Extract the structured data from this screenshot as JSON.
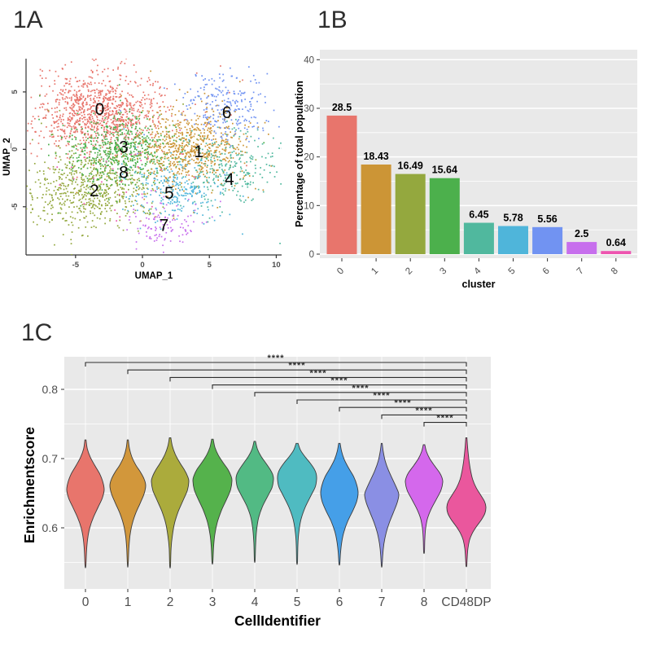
{
  "panel_labels": {
    "a": "1A",
    "b": "1B",
    "c": "1C"
  },
  "chart_data": [
    {
      "id": "umap",
      "type": "scatter",
      "xlabel": "UMAP_1",
      "ylabel": "UMAP_2",
      "xlim": [
        -8.7,
        10.4
      ],
      "ylim": [
        -9.2,
        7.9
      ],
      "xticks": [
        -5,
        0,
        5,
        10
      ],
      "yticks": [
        -5,
        0,
        5
      ],
      "grid": false,
      "point_size": 1.7,
      "clusters": [
        {
          "id": "0",
          "color": "#E8756C",
          "n": 1050,
          "cx": -3.4,
          "cy": 3.2,
          "sx": 2.3,
          "sy": 1.7,
          "lx": -3.2,
          "ly": 3.5
        },
        {
          "id": "1",
          "color": "#CC9536",
          "n": 700,
          "cx": 3.6,
          "cy": 0.1,
          "sx": 2.1,
          "sy": 1.7,
          "lx": 4.2,
          "ly": -0.2
        },
        {
          "id": "2",
          "color": "#94A83E",
          "n": 630,
          "cx": -3.9,
          "cy": -3.4,
          "sx": 2.1,
          "sy": 1.6,
          "lx": -3.6,
          "ly": -3.6
        },
        {
          "id": "3",
          "color": "#4CB04C",
          "n": 600,
          "cx": -1.6,
          "cy": -0.1,
          "sx": 1.9,
          "sy": 1.4,
          "lx": -1.4,
          "ly": 0.2
        },
        {
          "id": "4",
          "color": "#50B89E",
          "n": 260,
          "cx": 6.4,
          "cy": -1.6,
          "sx": 1.8,
          "sy": 1.5,
          "lx": 6.5,
          "ly": -2.6
        },
        {
          "id": "5",
          "color": "#4FB5DA",
          "n": 240,
          "cx": 2.3,
          "cy": -3.6,
          "sx": 1.6,
          "sy": 1.2,
          "lx": 2.0,
          "ly": -3.8
        },
        {
          "id": "6",
          "color": "#7193F2",
          "n": 230,
          "cx": 6.4,
          "cy": 3.9,
          "sx": 1.7,
          "sy": 1.4,
          "lx": 6.3,
          "ly": 3.2
        },
        {
          "id": "7",
          "color": "#C76FED",
          "n": 110,
          "cx": 1.7,
          "cy": -6.6,
          "sx": 1.4,
          "sy": 1.0,
          "lx": 1.6,
          "ly": -6.6
        },
        {
          "id": "8",
          "color": "#EE55B0",
          "n": 30,
          "cx": -1.5,
          "cy": -1.9,
          "sx": 1.9,
          "sy": 1.5,
          "lx": -1.4,
          "ly": -2.0
        }
      ],
      "draw_order": [
        0,
        2,
        3,
        1,
        4,
        6,
        5,
        7,
        8
      ]
    },
    {
      "id": "bar",
      "type": "bar",
      "title": "",
      "xlabel": "cluster",
      "ylabel": "Percentage of total population",
      "categories": [
        "0",
        "1",
        "2",
        "3",
        "4",
        "5",
        "6",
        "7",
        "8"
      ],
      "values": [
        28.5,
        18.43,
        16.49,
        15.64,
        6.45,
        5.78,
        5.56,
        2.5,
        0.64
      ],
      "value_labels": [
        "28.5",
        "18.43",
        "16.49",
        "15.64",
        "6.45",
        "5.78",
        "5.56",
        "2.5",
        "0.64"
      ],
      "colors": [
        "#E8756C",
        "#CC9536",
        "#94A83E",
        "#4CB04C",
        "#50B89E",
        "#4FB5DA",
        "#7193F2",
        "#C76FED",
        "#EE55B0"
      ],
      "yticks": [
        0,
        10,
        20,
        30,
        40
      ],
      "ylim": [
        0,
        42
      ],
      "grid": true,
      "panel_background": "#E9E9E9"
    },
    {
      "id": "violin",
      "type": "violin",
      "xlabel": "CellIdentifier",
      "ylabel": "Enrichmentscore",
      "categories": [
        "0",
        "1",
        "2",
        "3",
        "4",
        "5",
        "6",
        "7",
        "8",
        "CD48DP"
      ],
      "yticks": [
        0.6,
        0.7,
        0.8
      ],
      "yminor": [
        0.55,
        0.65,
        0.75
      ],
      "ylim": [
        0.512,
        0.847
      ],
      "grid": true,
      "panel_background": "#E9E9E9",
      "significance": {
        "label": "****",
        "pairs": [
          [
            0,
            9
          ],
          [
            1,
            9
          ],
          [
            2,
            9
          ],
          [
            3,
            9
          ],
          [
            4,
            9
          ],
          [
            5,
            9
          ],
          [
            6,
            9
          ],
          [
            7,
            9
          ],
          [
            8,
            9
          ]
        ]
      },
      "violins": [
        {
          "cat": "0",
          "color": "#E8756C",
          "hw": 23,
          "profile": [
            [
              0.727,
              0.03
            ],
            [
              0.714,
              0.1
            ],
            [
              0.702,
              0.26
            ],
            [
              0.69,
              0.5
            ],
            [
              0.678,
              0.76
            ],
            [
              0.666,
              0.93
            ],
            [
              0.655,
              1.0
            ],
            [
              0.643,
              0.9
            ],
            [
              0.63,
              0.68
            ],
            [
              0.615,
              0.42
            ],
            [
              0.6,
              0.23
            ],
            [
              0.585,
              0.12
            ],
            [
              0.568,
              0.06
            ],
            [
              0.545,
              0.02
            ]
          ]
        },
        {
          "cat": "1",
          "color": "#D2973B",
          "hw": 22,
          "profile": [
            [
              0.727,
              0.03
            ],
            [
              0.715,
              0.09
            ],
            [
              0.703,
              0.22
            ],
            [
              0.691,
              0.44
            ],
            [
              0.68,
              0.72
            ],
            [
              0.67,
              0.92
            ],
            [
              0.661,
              1.0
            ],
            [
              0.649,
              0.91
            ],
            [
              0.636,
              0.7
            ],
            [
              0.621,
              0.44
            ],
            [
              0.605,
              0.24
            ],
            [
              0.588,
              0.12
            ],
            [
              0.57,
              0.06
            ],
            [
              0.546,
              0.02
            ]
          ]
        },
        {
          "cat": "2",
          "color": "#ABAB3C",
          "hw": 23,
          "profile": [
            [
              0.73,
              0.04
            ],
            [
              0.718,
              0.12
            ],
            [
              0.706,
              0.28
            ],
            [
              0.694,
              0.52
            ],
            [
              0.683,
              0.78
            ],
            [
              0.674,
              0.94
            ],
            [
              0.667,
              1.0
            ],
            [
              0.654,
              0.92
            ],
            [
              0.64,
              0.7
            ],
            [
              0.624,
              0.44
            ],
            [
              0.607,
              0.24
            ],
            [
              0.589,
              0.12
            ],
            [
              0.57,
              0.05
            ],
            [
              0.545,
              0.02
            ]
          ]
        },
        {
          "cat": "3",
          "color": "#55B24C",
          "hw": 24,
          "profile": [
            [
              0.728,
              0.04
            ],
            [
              0.716,
              0.13
            ],
            [
              0.705,
              0.3
            ],
            [
              0.694,
              0.55
            ],
            [
              0.684,
              0.8
            ],
            [
              0.675,
              0.95
            ],
            [
              0.668,
              1.0
            ],
            [
              0.655,
              0.93
            ],
            [
              0.641,
              0.72
            ],
            [
              0.625,
              0.46
            ],
            [
              0.608,
              0.25
            ],
            [
              0.59,
              0.12
            ],
            [
              0.572,
              0.06
            ],
            [
              0.55,
              0.02
            ]
          ]
        },
        {
          "cat": "4",
          "color": "#52BA84",
          "hw": 23,
          "profile": [
            [
              0.725,
              0.04
            ],
            [
              0.714,
              0.14
            ],
            [
              0.704,
              0.32
            ],
            [
              0.694,
              0.58
            ],
            [
              0.684,
              0.83
            ],
            [
              0.677,
              0.96
            ],
            [
              0.67,
              1.0
            ],
            [
              0.658,
              0.92
            ],
            [
              0.645,
              0.68
            ],
            [
              0.63,
              0.4
            ],
            [
              0.614,
              0.2
            ],
            [
              0.597,
              0.1
            ],
            [
              0.578,
              0.05
            ],
            [
              0.553,
              0.02
            ]
          ]
        },
        {
          "cat": "5",
          "color": "#4FBBC1",
          "hw": 24,
          "profile": [
            [
              0.722,
              0.05
            ],
            [
              0.712,
              0.18
            ],
            [
              0.703,
              0.4
            ],
            [
              0.694,
              0.66
            ],
            [
              0.685,
              0.88
            ],
            [
              0.678,
              0.98
            ],
            [
              0.67,
              1.0
            ],
            [
              0.659,
              0.93
            ],
            [
              0.646,
              0.7
            ],
            [
              0.63,
              0.42
            ],
            [
              0.612,
              0.2
            ],
            [
              0.594,
              0.09
            ],
            [
              0.575,
              0.04
            ],
            [
              0.55,
              0.02
            ]
          ]
        },
        {
          "cat": "6",
          "color": "#459FE8",
          "hw": 23,
          "profile": [
            [
              0.722,
              0.04
            ],
            [
              0.71,
              0.12
            ],
            [
              0.698,
              0.27
            ],
            [
              0.686,
              0.5
            ],
            [
              0.674,
              0.76
            ],
            [
              0.661,
              0.94
            ],
            [
              0.65,
              1.0
            ],
            [
              0.638,
              0.92
            ],
            [
              0.625,
              0.72
            ],
            [
              0.61,
              0.45
            ],
            [
              0.595,
              0.25
            ],
            [
              0.58,
              0.13
            ],
            [
              0.564,
              0.06
            ],
            [
              0.548,
              0.02
            ]
          ]
        },
        {
          "cat": "7",
          "color": "#8A8FE4",
          "hw": 21,
          "profile": [
            [
              0.722,
              0.03
            ],
            [
              0.71,
              0.09
            ],
            [
              0.697,
              0.2
            ],
            [
              0.684,
              0.38
            ],
            [
              0.671,
              0.62
            ],
            [
              0.658,
              0.86
            ],
            [
              0.648,
              1.0
            ],
            [
              0.636,
              0.9
            ],
            [
              0.622,
              0.68
            ],
            [
              0.607,
              0.44
            ],
            [
              0.592,
              0.25
            ],
            [
              0.577,
              0.13
            ],
            [
              0.561,
              0.06
            ],
            [
              0.545,
              0.02
            ]
          ]
        },
        {
          "cat": "8",
          "color": "#D468EC",
          "hw": 23,
          "profile": [
            [
              0.72,
              0.04
            ],
            [
              0.71,
              0.13
            ],
            [
              0.7,
              0.3
            ],
            [
              0.69,
              0.55
            ],
            [
              0.68,
              0.82
            ],
            [
              0.673,
              0.95
            ],
            [
              0.666,
              1.0
            ],
            [
              0.654,
              0.9
            ],
            [
              0.641,
              0.65
            ],
            [
              0.627,
              0.38
            ],
            [
              0.613,
              0.18
            ],
            [
              0.598,
              0.08
            ],
            [
              0.582,
              0.04
            ],
            [
              0.565,
              0.02
            ]
          ]
        },
        {
          "cat": "CD48DP",
          "color": "#EA579D",
          "hw": 24,
          "profile": [
            [
              0.73,
              0.03
            ],
            [
              0.718,
              0.06
            ],
            [
              0.706,
              0.1
            ],
            [
              0.694,
              0.15
            ],
            [
              0.682,
              0.22
            ],
            [
              0.67,
              0.32
            ],
            [
              0.658,
              0.5
            ],
            [
              0.647,
              0.74
            ],
            [
              0.638,
              0.93
            ],
            [
              0.63,
              1.0
            ],
            [
              0.621,
              0.95
            ],
            [
              0.612,
              0.78
            ],
            [
              0.602,
              0.52
            ],
            [
              0.592,
              0.3
            ],
            [
              0.582,
              0.16
            ],
            [
              0.57,
              0.08
            ],
            [
              0.556,
              0.04
            ],
            [
              0.545,
              0.02
            ]
          ]
        }
      ]
    }
  ],
  "style": {
    "panel_bg": "#E9E9E9",
    "grid_color": "#FFFFFF",
    "tick_text_color": "#4D4D4D",
    "axis_line_color": "#333333",
    "title_text_color": "#000000",
    "violin_stroke": "#3C3C3C",
    "bracket_color": "#2E2E2E"
  }
}
